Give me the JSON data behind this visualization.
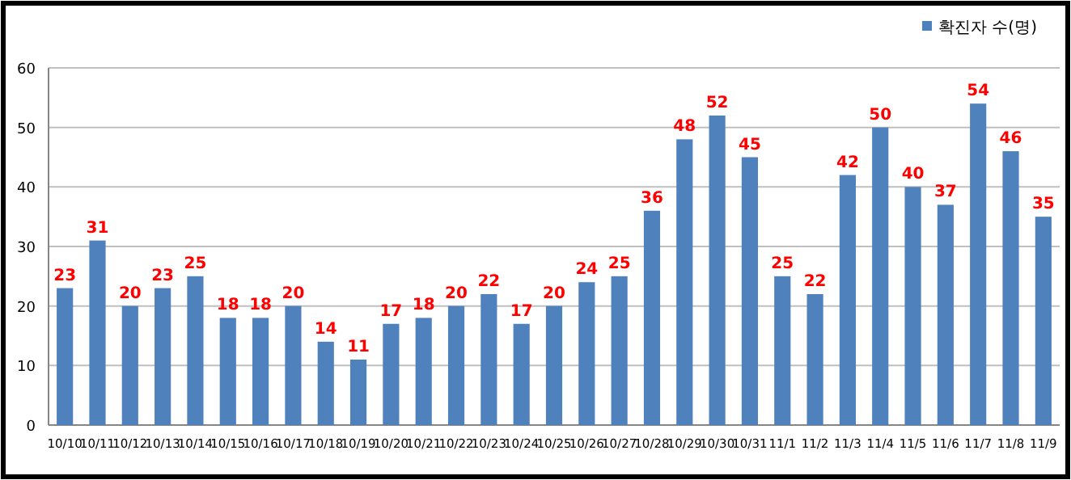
{
  "chart_data": {
    "type": "bar",
    "categories": [
      "10/10",
      "10/11",
      "10/12",
      "10/13",
      "10/14",
      "10/15",
      "10/16",
      "10/17",
      "10/18",
      "10/19",
      "10/20",
      "10/21",
      "10/22",
      "10/23",
      "10/24",
      "10/25",
      "10/26",
      "10/27",
      "10/28",
      "10/29",
      "10/30",
      "10/31",
      "11/1",
      "11/2",
      "11/3",
      "11/4",
      "11/5",
      "11/6",
      "11/7",
      "11/8",
      "11/9"
    ],
    "series": [
      {
        "name": "확진자 수(명)",
        "color": "#4f81bd",
        "values": [
          23,
          31,
          20,
          23,
          25,
          18,
          18,
          20,
          14,
          11,
          17,
          18,
          20,
          22,
          17,
          20,
          24,
          25,
          36,
          48,
          52,
          45,
          25,
          22,
          42,
          50,
          40,
          37,
          54,
          46,
          35
        ]
      }
    ],
    "ylim": [
      0,
      60
    ],
    "yticks": [
      0,
      10,
      20,
      30,
      40,
      50,
      60
    ],
    "grid": "y",
    "legend": "top right",
    "data_labels": true
  }
}
